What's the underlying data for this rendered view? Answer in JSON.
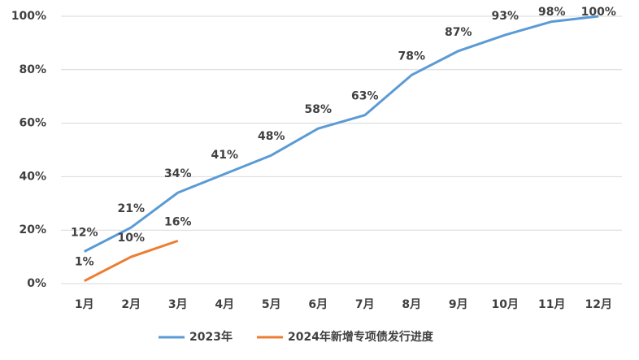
{
  "chart_data": {
    "type": "line",
    "categories": [
      "1月",
      "2月",
      "3月",
      "4月",
      "5月",
      "6月",
      "7月",
      "8月",
      "9月",
      "10月",
      "11月",
      "12月"
    ],
    "series": [
      {
        "name": "2023年",
        "color": "#5b9bd5",
        "values": [
          12,
          21,
          34,
          41,
          48,
          58,
          63,
          78,
          87,
          93,
          98,
          100
        ],
        "value_labels": [
          "12%",
          "21%",
          "34%",
          "41%",
          "48%",
          "58%",
          "63%",
          "78%",
          "87%",
          "93%",
          "98%",
          "100%"
        ]
      },
      {
        "name": "2024年新增专项债发行进度",
        "color": "#ed7d31",
        "values": [
          1,
          10,
          16,
          null,
          null,
          null,
          null,
          null,
          null,
          null,
          null,
          null
        ],
        "value_labels": [
          "1%",
          "10%",
          "16%",
          null,
          null,
          null,
          null,
          null,
          null,
          null,
          null,
          null
        ]
      }
    ],
    "ylim": [
      0,
      100
    ],
    "yticks": [
      {
        "value": 0,
        "label": "0%"
      },
      {
        "value": 20,
        "label": "20%"
      },
      {
        "value": 40,
        "label": "40%"
      },
      {
        "value": 60,
        "label": "60%"
      },
      {
        "value": 80,
        "label": "80%"
      },
      {
        "value": 100,
        "label": "100%"
      }
    ],
    "grid": true,
    "legend": "bottom"
  }
}
